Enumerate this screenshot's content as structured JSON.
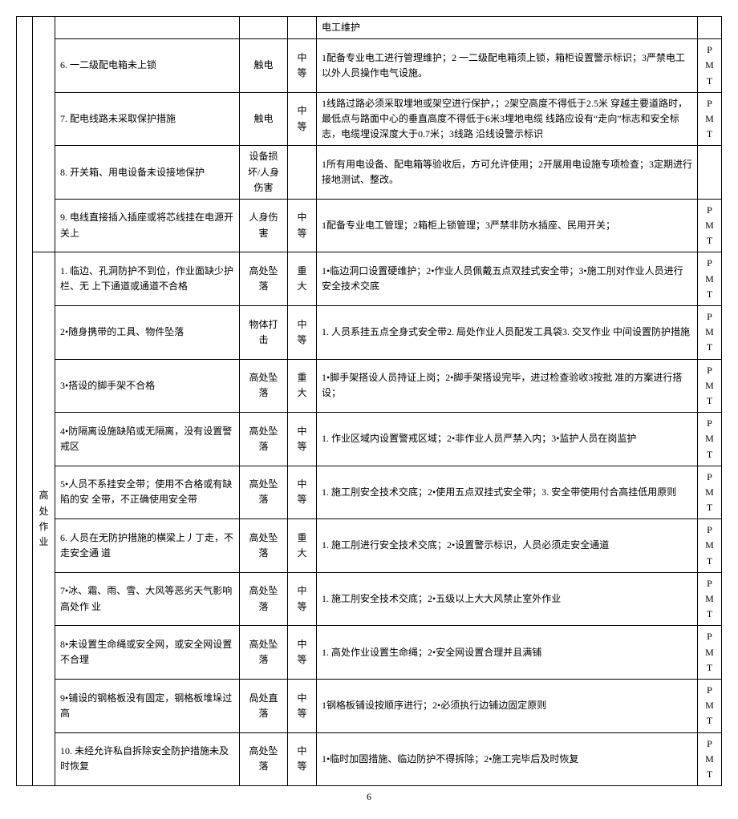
{
  "page_number": "6",
  "category_label": "高处作业",
  "top_trailing_measure": "电工维护",
  "rows_top": [
    {
      "hazard": "6. 一二级配电箱未上锁",
      "risk": "触电",
      "level": "中等",
      "measure": "1配备专业电工进行管理维护；2 一二级配电箱须上锁，箱柜设置警示标识；3严禁电工以外人员操作电气设施。",
      "resp": "PMT"
    },
    {
      "hazard": "7. 配电线路未采取保护措施",
      "risk": "触电",
      "level": "中等",
      "measure": "1线路过路必须采取埋地或架空进行保护，；2架空高度不得低于2.5米 穿越主要道路时，最低点与路面中心的垂直高度不得低于6米3埋地电缆 线路应设有“走向”标志和安全标志，电缆埋设深度大于0.7米；3线路 沿线设警示标识",
      "resp": "PMT"
    },
    {
      "hazard": "8. 开关箱、用电设备未设接地保护",
      "risk": "设备损坏/人身伤害",
      "level": "",
      "measure": "1所有用电设备、配电箱等验收后，方可允许使用；2开展用电设施专项检查；3定期进行接地测试、整改。",
      "resp": ""
    },
    {
      "hazard": "9. 电线直接插入插座或将芯线挂在电源开关上",
      "risk": "人身伤害",
      "level": "中等",
      "measure": "1配备专业电工管理；2箱柜上锁管理；3严禁非防水插座、民用开关；",
      "resp": "PMT"
    }
  ],
  "rows_high": [
    {
      "hazard": "1. 临边、孔洞防护不到位，作业面缺少护栏、无 上下通道或通道不合格",
      "risk": "高处坠落",
      "level": "重大",
      "measure": "1•临边洞口设置硬维护；2•作业人员佩戴五点双挂式安全带；3•施工刖对作业人员进行安全技术交底",
      "resp": "PMT"
    },
    {
      "hazard": "2•随身携带的工具、物件坠落",
      "risk": "物体打击",
      "level": "中等",
      "measure": "1. 人员系挂五点全身式安全带2. 局处作业人员配发工具袋3. 交叉作业 中间设置防护措施",
      "resp": "PMT"
    },
    {
      "hazard": "3•搭设的脚手架不合格",
      "risk": "高处坠落",
      "level": "重大",
      "measure": "1•脚手架搭设人员持证上岗；2•脚手架搭设完毕，进过检查验收3按批 准的方案进行搭设；",
      "resp": "PMT"
    },
    {
      "hazard": "4•防隔离设施缺陷或无隔离，没有设置警戒区",
      "risk": "高处坠落",
      "level": "中等",
      "measure": "1. 作业区域内设置警戒区域；2•非作业人员严禁入内；3•监护人员在岗监护",
      "resp": "PMT"
    },
    {
      "hazard": "5•人员不系挂安全带；使用不合格或有缺陷的安 全带，不正确使用安全带",
      "risk": "高处坠落",
      "level": "中等",
      "measure": "1. 施工刖安全技术交底；2•使用五点双挂式安全带；3. 安全带使用付合高挂低用原则",
      "resp": "PMT"
    },
    {
      "hazard": "6. 人员在无防护措施的横梁上丿丁走，不走安全通 道",
      "risk": "高处坠落",
      "level": "重大",
      "measure": "1. 施工刖进行安全技术交底；2•设置警示标识，人员必须走安全通道",
      "resp": "PMT"
    },
    {
      "hazard": "7•冰、霜、雨、雪、大风等恶劣天气影响高处作 业",
      "risk": "高处坠落",
      "level": "中等",
      "measure": "1. 施工刖安全技术交底；2•五级以上大大风禁止室外作业",
      "resp": "PMT"
    },
    {
      "hazard": "8•未设置生命绳或安全网，或安全网设置不合理",
      "risk": "高处坠落",
      "level": "中等",
      "measure": "1. 高处作业设置生命绳；2•安全网设置合理并且满铺",
      "resp": "PMT"
    },
    {
      "hazard": "9•铺设的钢格板没有固定，钢格板堆垛过高",
      "risk": "咼处直落",
      "level": "中等",
      "measure": "1钢格板铺设按顺序进行；2•必须执行边铺边固定原则",
      "resp": "PMT"
    },
    {
      "hazard": "10. 未经允许私自拆除安全防护措施未及时恢复",
      "risk": "高处坠落",
      "level": "中等",
      "measure": "1•临时加固措施、临边防护不得拆除；2•施工完毕后及时恢复",
      "resp": "PMT"
    }
  ]
}
